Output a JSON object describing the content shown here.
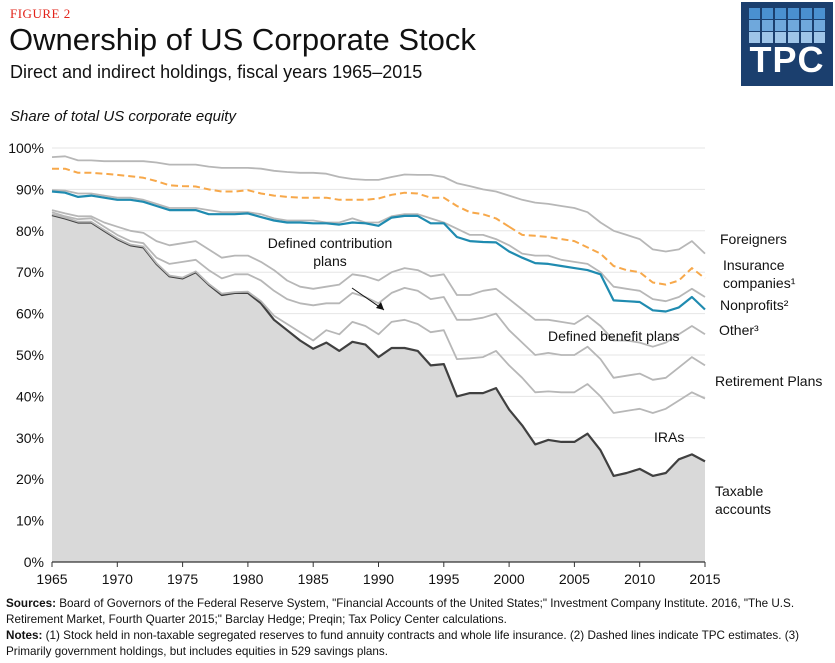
{
  "figure_label": "FIGURE 2",
  "logo": {
    "text": "TPC",
    "color": "#1b3f6e",
    "square_colors": [
      "#4a90d0",
      "#6fa8dc",
      "#9fc5e8"
    ]
  },
  "chart_data": {
    "type": "area",
    "title": "Ownership of US Corporate Stock",
    "subtitle": "Direct and indirect holdings, fiscal years 1965–2015",
    "ylabel": "Share of total US corporate equity",
    "xlabel": "",
    "ylim": [
      0,
      100
    ],
    "yticks": [
      0,
      10,
      20,
      30,
      40,
      50,
      60,
      70,
      80,
      90,
      100
    ],
    "ytick_labels": [
      "0%",
      "10%",
      "20%",
      "30%",
      "40%",
      "50%",
      "60%",
      "70%",
      "80%",
      "90%",
      "100%"
    ],
    "xlim": [
      1965,
      2015
    ],
    "xticks": [
      1965,
      1970,
      1975,
      1980,
      1985,
      1990,
      1995,
      2000,
      2005,
      2010,
      2015
    ],
    "x": [
      1965,
      1966,
      1967,
      1968,
      1969,
      1970,
      1971,
      1972,
      1973,
      1974,
      1975,
      1976,
      1977,
      1978,
      1979,
      1980,
      1981,
      1982,
      1983,
      1984,
      1985,
      1986,
      1987,
      1988,
      1989,
      1990,
      1991,
      1992,
      1993,
      1994,
      1995,
      1996,
      1997,
      1998,
      1999,
      2000,
      2001,
      2002,
      2003,
      2004,
      2005,
      2006,
      2007,
      2008,
      2009,
      2010,
      2011,
      2012,
      2013,
      2014,
      2015
    ],
    "series": [
      {
        "name": "Taxable accounts",
        "style": "area",
        "color": "#d9d9d9",
        "line_color": "#404040",
        "values": [
          83.8,
          83,
          82,
          82,
          80,
          78,
          76.5,
          76,
          72,
          69,
          68.5,
          70,
          67,
          64.5,
          65,
          65,
          62.5,
          58.5,
          56,
          53.5,
          51.5,
          53,
          51,
          53.2,
          52.5,
          49.5,
          51.7,
          51.7,
          51,
          47.5,
          47.8,
          40,
          40.8,
          40.8,
          42,
          36.8,
          33,
          28.4,
          29.5,
          29,
          29,
          31,
          27,
          20.8,
          21.5,
          22.5,
          20.8,
          21.5,
          24.8,
          26,
          24.3
        ]
      },
      {
        "name": "IRAs",
        "style": "line",
        "color": "#b7b7b7",
        "values": [
          84,
          83.2,
          82.2,
          82.2,
          80.2,
          78.2,
          76.7,
          76.2,
          72.2,
          69.2,
          68.7,
          70.2,
          67.2,
          64.8,
          65.2,
          65.3,
          63,
          59.5,
          57.5,
          55.5,
          53.5,
          56,
          55,
          58,
          57,
          55,
          58,
          58.5,
          57.5,
          55.5,
          56,
          49,
          49.2,
          49.5,
          51,
          47.5,
          44.5,
          41,
          41.2,
          41,
          41,
          43,
          40,
          36,
          36.5,
          37,
          36,
          37,
          39,
          41,
          39.5
        ]
      },
      {
        "name": "Defined benefit plans",
        "style": "line",
        "color": "#b7b7b7",
        "values": [
          84.5,
          83.5,
          82.8,
          83,
          81,
          79,
          77.5,
          77,
          73.5,
          72,
          72.5,
          73,
          70.5,
          68.5,
          69.5,
          69.5,
          68,
          65.5,
          63.5,
          62.5,
          62,
          62.5,
          62.5,
          65,
          64,
          62.5,
          65,
          66.2,
          65.5,
          63.5,
          64,
          58.5,
          58.5,
          59,
          60,
          56,
          53,
          50,
          50.5,
          50,
          50,
          52,
          49,
          44.5,
          45,
          45.5,
          44,
          44.5,
          47,
          49.5,
          47.5
        ]
      },
      {
        "name": "Defined contribution plans",
        "style": "line",
        "color": "#b7b7b7",
        "values": [
          85,
          84.2,
          83.5,
          83.5,
          82,
          81,
          80,
          79.5,
          77.5,
          76.5,
          77,
          77.5,
          75.5,
          73.5,
          74,
          74,
          72.5,
          70.5,
          68,
          66.5,
          66,
          66.5,
          67,
          69.5,
          69,
          68,
          70,
          71,
          70.5,
          69,
          69.5,
          64.5,
          64.5,
          65.5,
          66,
          63.5,
          61,
          58.5,
          58.5,
          58,
          57.5,
          59.5,
          57,
          53.5,
          53.5,
          53,
          52,
          53,
          55,
          57,
          55
        ]
      },
      {
        "name": "Other",
        "style": "line",
        "color": "#b7b7b7",
        "values": [
          89.8,
          89.7,
          89,
          89,
          88.5,
          88,
          88,
          87.5,
          86.5,
          85.5,
          85.5,
          85.5,
          85,
          84.5,
          84.5,
          84.5,
          84,
          83,
          82.5,
          82.5,
          82.5,
          82,
          82,
          83,
          82,
          82,
          83.5,
          84,
          84,
          83,
          82,
          80.5,
          79,
          79,
          78,
          76.5,
          74.5,
          74,
          74,
          73,
          72.5,
          72,
          70,
          66.5,
          66,
          65.5,
          63.5,
          63,
          64,
          66,
          64
        ]
      },
      {
        "name": "Nonprofits",
        "style": "line",
        "color": "#1f8bb0",
        "values": [
          89.5,
          89.2,
          88.2,
          88.5,
          88,
          87.5,
          87.5,
          87,
          86,
          85,
          85,
          85,
          84,
          84,
          84,
          84.2,
          83.3,
          82.5,
          82,
          82,
          81.8,
          81.8,
          81.5,
          82,
          81.8,
          81.2,
          83.2,
          83.6,
          83.6,
          81.8,
          81.8,
          78.5,
          77.5,
          77.3,
          77.2,
          75,
          73.5,
          72.2,
          72,
          71.5,
          71,
          70.5,
          69.5,
          63.2,
          63,
          62.8,
          60.8,
          60.5,
          61.5,
          64,
          61
        ]
      },
      {
        "name": "Insurance companies",
        "style": "dashed",
        "color": "#f7a84a",
        "values": [
          95,
          95,
          94,
          94,
          93.8,
          93.5,
          93.2,
          92.8,
          92,
          91,
          90.8,
          90.7,
          90,
          89.5,
          89.5,
          89.8,
          89,
          88.5,
          88.2,
          88,
          88,
          88,
          87.5,
          87.5,
          87.5,
          87.8,
          88.7,
          89.2,
          89,
          88,
          88,
          86,
          84.5,
          84,
          83,
          81,
          79,
          78.8,
          78.5,
          78,
          77.5,
          76,
          74.5,
          71.5,
          70.5,
          70,
          67.5,
          67,
          68,
          71,
          68.5
        ]
      },
      {
        "name": "Foreigners",
        "style": "line",
        "color": "#b7b7b7",
        "values": [
          97.8,
          98,
          97,
          97,
          96.8,
          96.8,
          96.8,
          96.8,
          96.5,
          96,
          96,
          96,
          95.5,
          95.2,
          95.2,
          95.2,
          95,
          94.5,
          94.2,
          94,
          94,
          93.8,
          93,
          92.5,
          92.3,
          92.3,
          93,
          93.6,
          93.5,
          93.5,
          93,
          91.5,
          90.8,
          90,
          89.5,
          88.5,
          87.5,
          86.8,
          86.5,
          86,
          85.5,
          84.5,
          82,
          80,
          79,
          78,
          75.5,
          75,
          75.5,
          77.5,
          74.5
        ]
      }
    ],
    "annotations": [
      {
        "lines": [
          "Foreigners"
        ]
      },
      {
        "lines": [
          "Insurance",
          "companies¹"
        ]
      },
      {
        "lines": [
          "Nonprofits²"
        ]
      },
      {
        "lines": [
          "Other³"
        ]
      },
      {
        "lines": [
          "Defined benefit plans"
        ]
      },
      {
        "lines": [
          "Defined contribution",
          "plans"
        ]
      },
      {
        "lines": [
          "Retirement Plans"
        ]
      },
      {
        "lines": [
          "IRAs"
        ]
      },
      {
        "lines": [
          "Taxable",
          "accounts"
        ]
      }
    ]
  },
  "footer": {
    "sources_label": "Sources:",
    "sources_text": " Board of Governors of the Federal Reserve System, \"Financial Accounts of the United States;\" Investment Company Institute. 2016, \"The U.S. Retirement Market, Fourth Quarter 2015;\" Barclay Hedge; Preqin; Tax Policy Center calculations.",
    "notes_label": "Notes:",
    "notes_text": " (1) Stock held in non-taxable segregated reserves to fund annuity contracts and whole life insurance. (2) Dashed lines indicate TPC estimates. (3) Primarily government holdings, but includes equities in 529 savings plans."
  }
}
